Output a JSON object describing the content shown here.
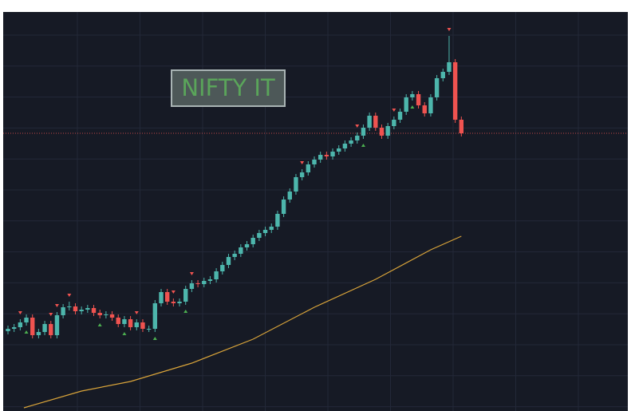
{
  "chart_data": {
    "type": "candlestick",
    "title": "NIFTY IT",
    "ylim": [
      0,
      500
    ],
    "grid": true,
    "up_color": "#4db6ac",
    "down_color": "#ef5350",
    "ma_color": "#d9a43a",
    "open": [
      100,
      103,
      105,
      111,
      117,
      95,
      99,
      109,
      95,
      120,
      130,
      131,
      125,
      127,
      129,
      123,
      120,
      121,
      117,
      109,
      115,
      105,
      111,
      103,
      103,
      135,
      149,
      137,
      135,
      137,
      153,
      160,
      159,
      163,
      165,
      175,
      183,
      193,
      197,
      205,
      209,
      217,
      223,
      227,
      231,
      247,
      265,
      275,
      293,
      299,
      309,
      315,
      321,
      319,
      325,
      329,
      335,
      339,
      345,
      355,
      370,
      355,
      345,
      357,
      365,
      375,
      393,
      397,
      383,
      373,
      393,
      417,
      425,
      437,
      365
    ],
    "high": [
      107,
      109,
      115,
      121,
      121,
      103,
      113,
      113,
      124,
      134,
      137,
      135,
      131,
      133,
      133,
      127,
      125,
      125,
      121,
      119,
      119,
      115,
      115,
      107,
      139,
      153,
      153,
      141,
      141,
      157,
      164,
      164,
      167,
      169,
      179,
      187,
      197,
      201,
      209,
      213,
      221,
      227,
      231,
      235,
      251,
      269,
      279,
      297,
      303,
      313,
      319,
      325,
      325,
      329,
      333,
      339,
      343,
      349,
      359,
      374,
      374,
      359,
      361,
      369,
      379,
      397,
      401,
      401,
      387,
      397,
      421,
      429,
      470,
      441,
      369
    ],
    "low": [
      96,
      99,
      101,
      107,
      91,
      91,
      95,
      91,
      91,
      116,
      126,
      121,
      121,
      123,
      119,
      116,
      116,
      113,
      105,
      105,
      101,
      101,
      99,
      99,
      99,
      131,
      133,
      131,
      131,
      133,
      149,
      155,
      155,
      159,
      161,
      171,
      179,
      189,
      193,
      201,
      205,
      213,
      219,
      223,
      227,
      243,
      261,
      271,
      289,
      295,
      305,
      311,
      315,
      315,
      321,
      325,
      331,
      335,
      341,
      351,
      351,
      341,
      341,
      353,
      361,
      371,
      389,
      379,
      369,
      369,
      389,
      413,
      421,
      361,
      344
    ],
    "close": [
      103,
      105,
      111,
      117,
      95,
      99,
      109,
      95,
      120,
      130,
      131,
      125,
      127,
      129,
      123,
      120,
      121,
      117,
      109,
      115,
      105,
      111,
      103,
      103,
      135,
      149,
      137,
      135,
      137,
      153,
      160,
      159,
      163,
      165,
      175,
      183,
      193,
      197,
      205,
      209,
      217,
      223,
      227,
      231,
      247,
      265,
      275,
      293,
      299,
      309,
      315,
      321,
      319,
      325,
      329,
      335,
      339,
      345,
      355,
      370,
      355,
      345,
      357,
      365,
      375,
      393,
      397,
      383,
      373,
      393,
      417,
      425,
      437,
      365,
      348
    ],
    "sell_signals": [
      2,
      7,
      8,
      10,
      21,
      27,
      30,
      48,
      57,
      63,
      72
    ],
    "buy_signals": [
      3,
      15,
      19,
      24,
      29,
      58,
      66
    ],
    "ma": {
      "x": [
        2.6,
        12,
        20,
        30,
        40,
        50,
        60,
        69,
        74
      ],
      "values": [
        4,
        25,
        37,
        60,
        90,
        130,
        165,
        202,
        219
      ]
    }
  }
}
